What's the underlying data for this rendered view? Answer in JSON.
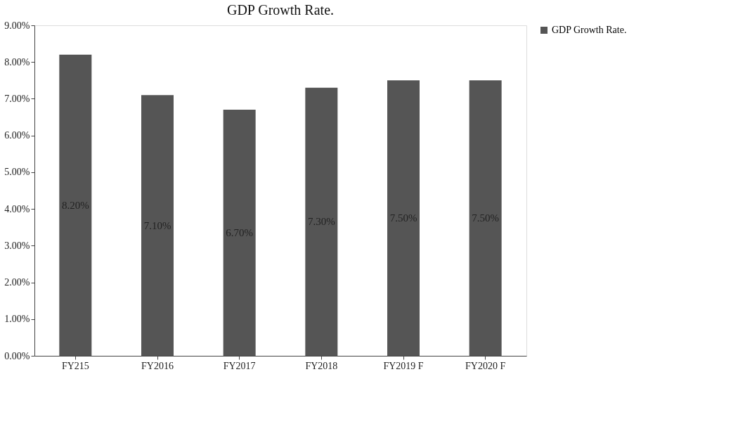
{
  "chart_data": {
    "type": "bar",
    "title": "GDP Growth Rate.",
    "categories": [
      "FY215",
      "FY2016",
      "FY2017",
      "FY2018",
      "FY2019 F",
      "FY2020 F"
    ],
    "series": [
      {
        "name": "GDP Growth Rate.",
        "color": "#555555",
        "values": [
          8.2,
          7.1,
          6.7,
          7.3,
          7.5,
          7.5
        ],
        "value_labels": [
          "8.20%",
          "7.10%",
          "6.70%",
          "7.30%",
          "7.50%",
          "7.50%"
        ]
      }
    ],
    "ylim": [
      0,
      9
    ],
    "yticks": [
      {
        "value": 0,
        "label": "0.00%"
      },
      {
        "value": 1,
        "label": "1.00%"
      },
      {
        "value": 2,
        "label": "2.00%"
      },
      {
        "value": 3,
        "label": "3.00%"
      },
      {
        "value": 4,
        "label": "4.00%"
      },
      {
        "value": 5,
        "label": "5.00%"
      },
      {
        "value": 6,
        "label": "6.00%"
      },
      {
        "value": 7,
        "label": "7.00%"
      },
      {
        "value": 8,
        "label": "8.00%"
      },
      {
        "value": 9,
        "label": "9.00%"
      }
    ],
    "grid": false,
    "legend": "right"
  }
}
